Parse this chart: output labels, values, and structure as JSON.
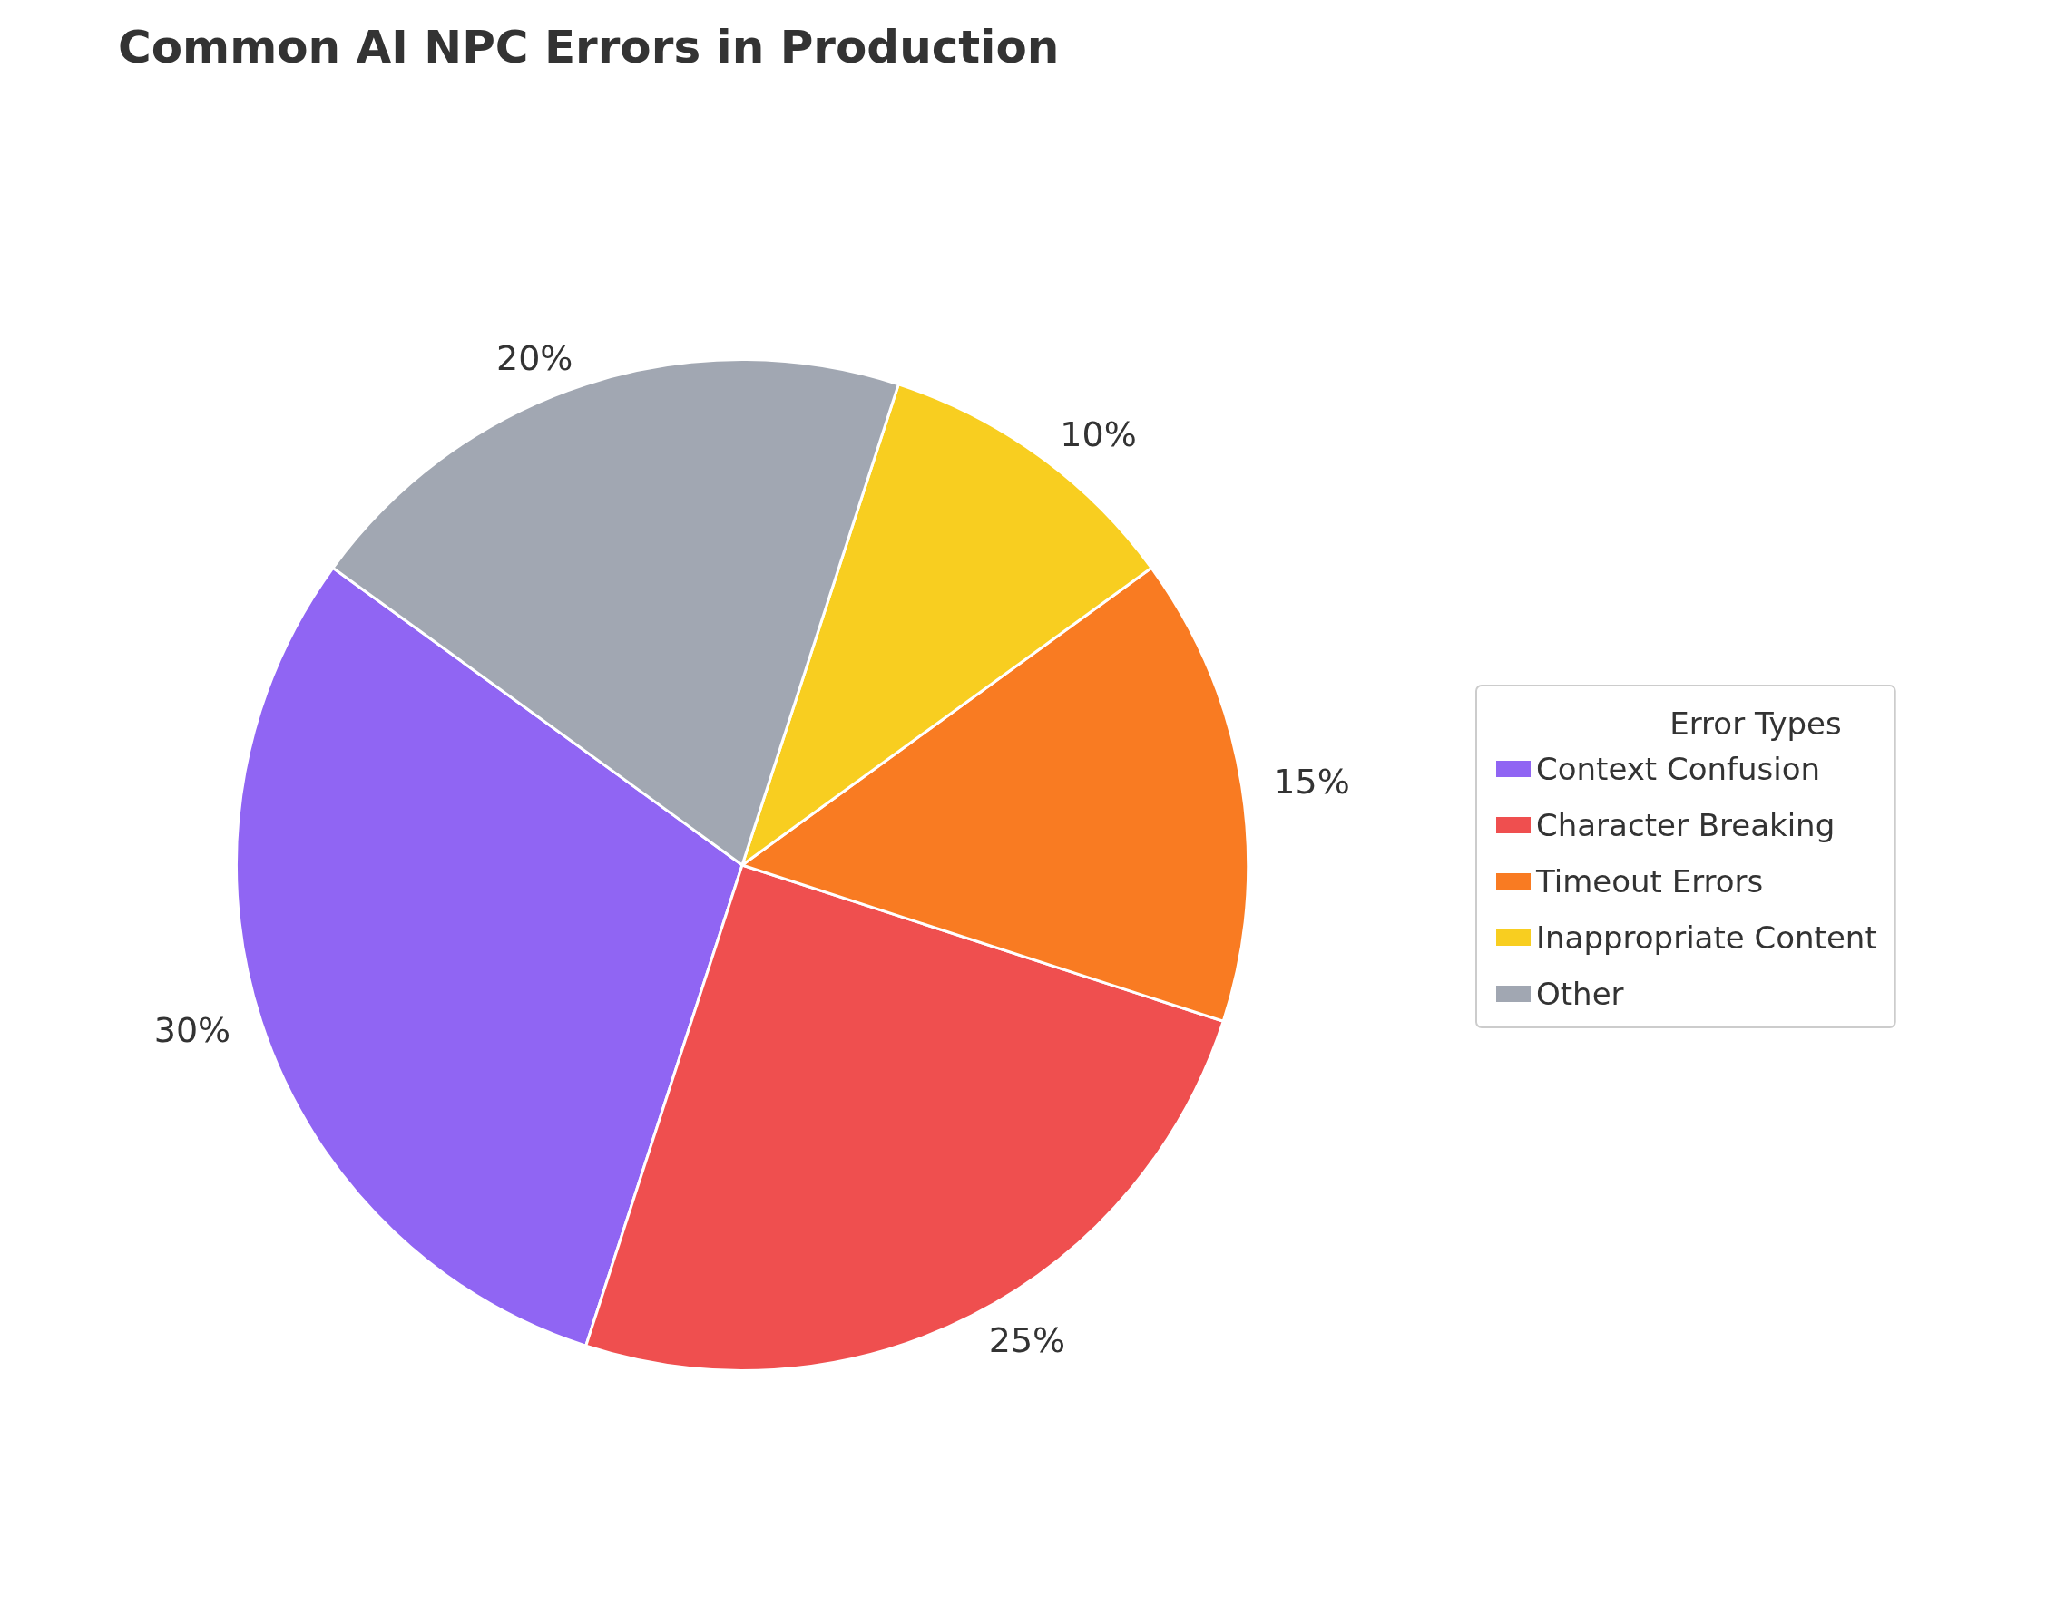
{
  "chart_data": {
    "type": "pie",
    "title": "Common AI NPC Errors in Production",
    "legend_title": "Error Types",
    "legend": "right",
    "categories": [
      "Context Confusion",
      "Character Breaking",
      "Timeout Errors",
      "Inappropriate Content",
      "Other"
    ],
    "values": [
      30,
      25,
      15,
      10,
      20
    ],
    "value_labels": [
      "30%",
      "25%",
      "15%",
      "10%",
      "20%"
    ],
    "colors": [
      "#9065f3",
      "#ef4f4f",
      "#f97b22",
      "#f8ce20",
      "#a1a7b2"
    ]
  }
}
